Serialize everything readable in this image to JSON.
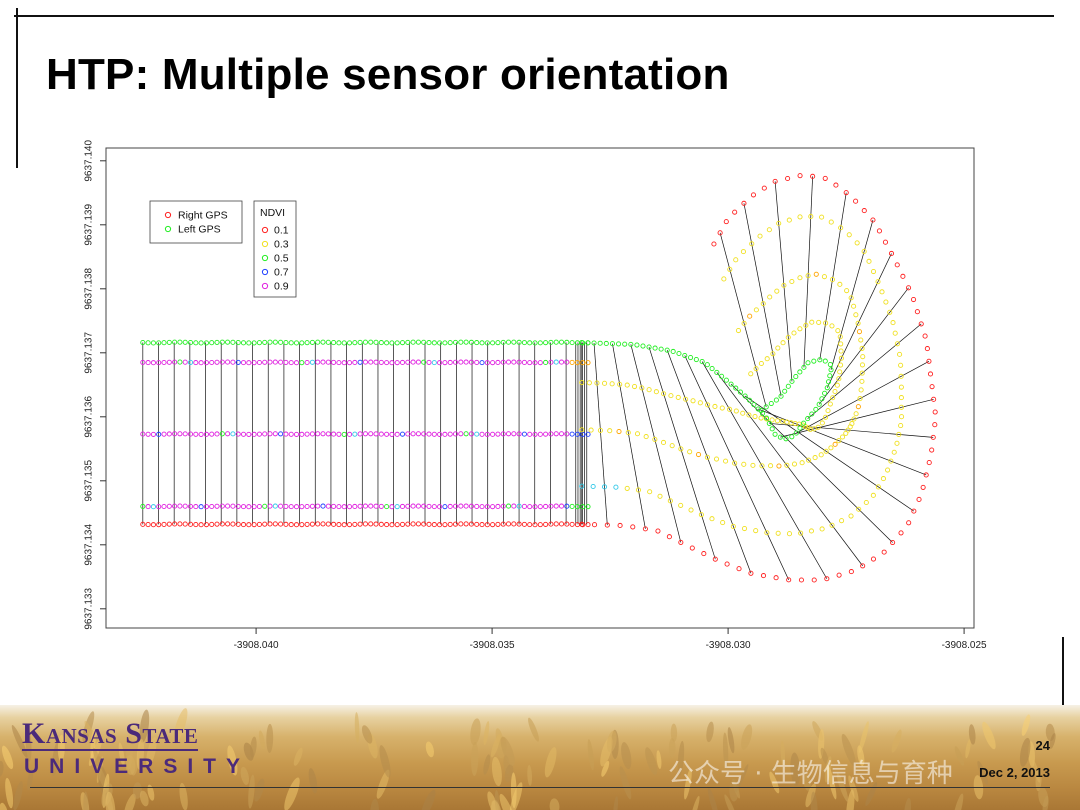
{
  "slide": {
    "title": "HTP: Multiple sensor orientation",
    "page_number": "24",
    "date": "Dec 2, 2013",
    "logo_line1": "Kansas State",
    "logo_line2": "UNIVERSITY",
    "watermark": "公众号 · 生物信息与育种"
  },
  "colors": {
    "right_gps": "#ff2020",
    "left_gps": "#22ee22",
    "ndvi_0_1": "#ff2020",
    "ndvi_0_3": "#f0e020",
    "ndvi_0_5": "#22ee22",
    "ndvi_0_7": "#2040ff",
    "ndvi_0_9": "#e020e0",
    "logo_purple": "#4b2a7a"
  },
  "chart_data": {
    "type": "scatter",
    "title": "",
    "xlabel": "",
    "ylabel": "",
    "xlim": [
      -3908.04318,
      -3908.02479
    ],
    "ylim": [
      9637.1327,
      9637.1402
    ],
    "x_ticks": [
      "-3908.040",
      "-3908.035",
      "-3908.030",
      "-3908.025"
    ],
    "x_tick_values": [
      -3908.04,
      -3908.035,
      -3908.03,
      -3908.025
    ],
    "y_ticks": [
      "9637.133",
      "9637.134",
      "9637.135",
      "9637.136",
      "9637.137",
      "9637.138",
      "9637.139",
      "9637.140"
    ],
    "y_tick_values": [
      9637.133,
      9637.134,
      9637.135,
      9637.136,
      9637.137,
      9637.138,
      9637.139,
      9637.14
    ],
    "legend_gps": {
      "placement": "top-left",
      "entries": [
        {
          "label": "Right GPS",
          "color": "#ff2020"
        },
        {
          "label": "Left GPS",
          "color": "#22ee22"
        }
      ]
    },
    "legend_ndvi": {
      "title": "NDVI",
      "placement": "top-left",
      "entries": [
        {
          "label": "0.1",
          "color": "#ff2020"
        },
        {
          "label": "0.3",
          "color": "#f0e020"
        },
        {
          "label": "0.5",
          "color": "#22ee22"
        },
        {
          "label": "0.7",
          "color": "#2040ff"
        },
        {
          "label": "0.9",
          "color": "#e020e0"
        }
      ]
    },
    "straight_section": {
      "x_start": -3908.0424,
      "x_end": -3908.0331,
      "left_gps_y": 9637.13716,
      "right_gps_y": 9637.13432,
      "sensor_rows_y": [
        9637.13685,
        9637.13573,
        9637.1346
      ],
      "dominant_ndvi": [
        0.9,
        0.9,
        0.9
      ]
    },
    "turn": {
      "left_path": [
        [
          -3908.0331,
          9637.13716
        ],
        [
          -3908.032,
          9637.13713
        ],
        [
          -3908.0312,
          9637.13703
        ],
        [
          -3908.0305,
          9637.13685
        ],
        [
          -3908.03,
          9637.13655
        ],
        [
          -3908.0296,
          9637.1363
        ],
        [
          -3908.0292,
          9637.136
        ],
        [
          -3908.029,
          9637.13572
        ],
        [
          -3908.0288,
          9637.13565
        ],
        [
          -3908.0286,
          9637.1357
        ],
        [
          -3908.0284,
          9637.1359
        ],
        [
          -3908.0281,
          9637.13615
        ],
        [
          -3908.0279,
          9637.13645
        ],
        [
          -3908.0278,
          9637.1368
        ],
        [
          -3908.028,
          9637.1369
        ],
        [
          -3908.0283,
          9637.13685
        ],
        [
          -3908.0286,
          9637.1366
        ],
        [
          -3908.0289,
          9637.1363
        ],
        [
          -3908.0293,
          9637.1361
        ]
      ],
      "right_path": [
        [
          -3908.0331,
          9637.13432
        ],
        [
          -3908.0322,
          9637.1343
        ],
        [
          -3908.0315,
          9637.13422
        ],
        [
          -3908.0309,
          9637.134
        ],
        [
          -3908.0302,
          9637.13375
        ],
        [
          -3908.0295,
          9637.13355
        ],
        [
          -3908.0287,
          9637.13345
        ],
        [
          -3908.028,
          9637.13345
        ],
        [
          -3908.0273,
          9637.1336
        ],
        [
          -3908.0267,
          9637.13388
        ],
        [
          -3908.0262,
          9637.1343
        ],
        [
          -3908.0259,
          9637.1348
        ],
        [
          -3908.0257,
          9637.1354
        ],
        [
          -3908.0256,
          9637.136
        ],
        [
          -3908.0257,
          9637.1366
        ],
        [
          -3908.0258,
          9637.1372
        ],
        [
          -3908.0261,
          9637.1379
        ],
        [
          -3908.0265,
          9637.1385
        ],
        [
          -3908.0269,
          9637.13905
        ],
        [
          -3908.0274,
          9637.13945
        ],
        [
          -3908.0279,
          9637.13972
        ],
        [
          -3908.0284,
          9637.13978
        ],
        [
          -3908.029,
          9637.13968
        ],
        [
          -3908.0295,
          9637.13945
        ],
        [
          -3908.03,
          9637.1391
        ],
        [
          -3908.0303,
          9637.1387
        ]
      ]
    }
  }
}
